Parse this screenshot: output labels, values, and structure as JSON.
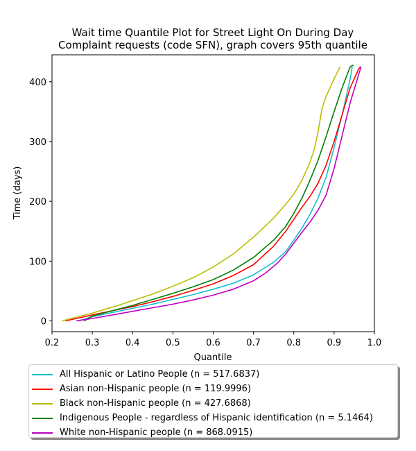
{
  "chart_data": {
    "type": "line",
    "title": "Wait time Quantile Plot for Street Light On During Day\nComplaint  requests (code SFN), graph covers 95th quantile",
    "xlabel": "Quantile",
    "ylabel": "Time (days)",
    "xlim": [
      0.2,
      1.0
    ],
    "ylim": [
      -18,
      445
    ],
    "xticks": [
      "0.2",
      "0.3",
      "0.4",
      "0.5",
      "0.6",
      "0.7",
      "0.8",
      "0.9",
      "1.0"
    ],
    "xtick_values": [
      0.2,
      0.3,
      0.4,
      0.5,
      0.6,
      0.7,
      0.8,
      0.9,
      1.0
    ],
    "yticks": [
      "0",
      "100",
      "200",
      "300",
      "400"
    ],
    "ytick_values": [
      0,
      100,
      200,
      300,
      400
    ],
    "grid": false,
    "legend_position": "below",
    "series": [
      {
        "name": "All Hispanic or Latino People (n = 517.6837)",
        "color": "#17becf",
        "x": [
          0.265,
          0.3,
          0.35,
          0.4,
          0.45,
          0.5,
          0.55,
          0.6,
          0.65,
          0.7,
          0.75,
          0.78,
          0.8,
          0.82,
          0.84,
          0.86,
          0.88,
          0.9,
          0.92,
          0.94,
          0.945
        ],
        "y": [
          0,
          7,
          14,
          21,
          28,
          36,
          44,
          53,
          63,
          77,
          98,
          116,
          135,
          155,
          178,
          205,
          240,
          290,
          345,
          405,
          425
        ]
      },
      {
        "name": "Asian non-Hispanic people (n = 119.9996)",
        "color": "#ff0000",
        "x": [
          0.233,
          0.3,
          0.35,
          0.4,
          0.45,
          0.5,
          0.55,
          0.6,
          0.65,
          0.7,
          0.75,
          0.78,
          0.8,
          0.82,
          0.84,
          0.86,
          0.88,
          0.9,
          0.92,
          0.94,
          0.96,
          0.965
        ],
        "y": [
          0,
          10,
          17,
          24,
          32,
          41,
          51,
          62,
          76,
          94,
          125,
          150,
          170,
          190,
          208,
          230,
          260,
          300,
          345,
          390,
          420,
          425
        ]
      },
      {
        "name": "Black non-Hispanic people (n = 427.6868)",
        "color": "#bcbd00",
        "x": [
          0.225,
          0.3,
          0.35,
          0.4,
          0.45,
          0.5,
          0.55,
          0.6,
          0.65,
          0.7,
          0.75,
          0.78,
          0.8,
          0.82,
          0.84,
          0.85,
          0.86,
          0.87,
          0.88,
          0.9,
          0.915
        ],
        "y": [
          0,
          13,
          23,
          34,
          45,
          58,
          72,
          90,
          112,
          140,
          172,
          195,
          212,
          235,
          265,
          285,
          315,
          355,
          375,
          405,
          425
        ]
      },
      {
        "name": "Indigenous People - regardless of Hispanic identification (n = 5.1464)",
        "color": "#008000",
        "x": [
          0.28,
          0.3,
          0.35,
          0.4,
          0.45,
          0.5,
          0.55,
          0.6,
          0.65,
          0.7,
          0.75,
          0.78,
          0.8,
          0.82,
          0.84,
          0.86,
          0.88,
          0.9,
          0.92,
          0.94,
          0.948
        ],
        "y": [
          0,
          8,
          17,
          26,
          36,
          46,
          57,
          69,
          85,
          106,
          135,
          158,
          180,
          205,
          235,
          268,
          308,
          350,
          390,
          425,
          428
        ]
      },
      {
        "name": "White non-Hispanic people (n = 868.0915)",
        "color": "#bf00bf",
        "x": [
          0.26,
          0.3,
          0.35,
          0.4,
          0.45,
          0.5,
          0.55,
          0.6,
          0.65,
          0.7,
          0.73,
          0.76,
          0.78,
          0.8,
          0.82,
          0.84,
          0.86,
          0.88,
          0.9,
          0.92,
          0.94,
          0.96,
          0.967
        ],
        "y": [
          0,
          4,
          10,
          16,
          22,
          28,
          35,
          43,
          53,
          67,
          80,
          97,
          112,
          130,
          148,
          165,
          185,
          210,
          255,
          310,
          365,
          410,
          425
        ]
      }
    ]
  }
}
